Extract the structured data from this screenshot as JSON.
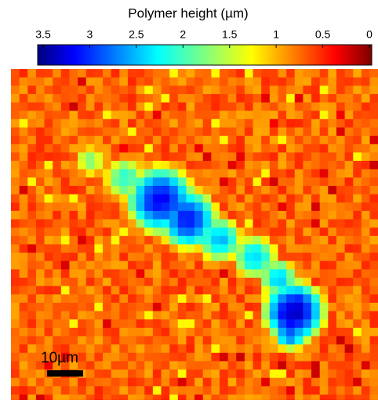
{
  "chart_data": {
    "type": "heatmap",
    "title": "Polymer height (µm)",
    "colorbar": {
      "xlim": [
        3.5,
        0
      ],
      "xticks": [
        3.5,
        3,
        2.5,
        2,
        1.5,
        1,
        0.5,
        0
      ],
      "colormap": "jet"
    },
    "scale_bar": "10µm"
  }
}
